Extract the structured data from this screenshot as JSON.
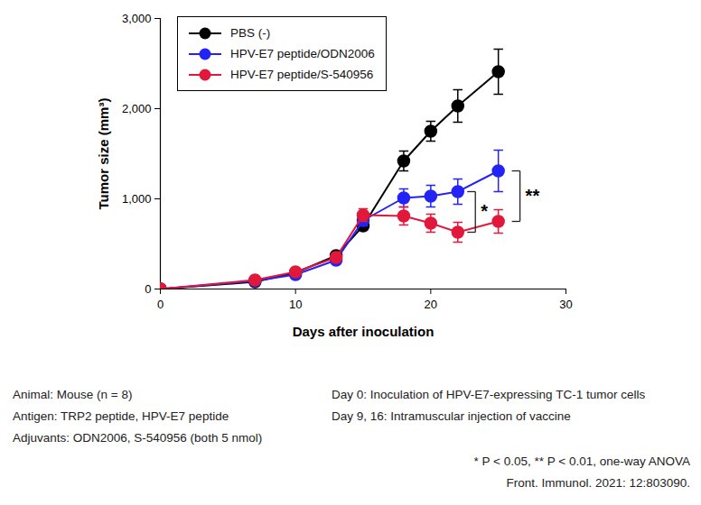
{
  "chart_data": {
    "type": "line",
    "x_label": "Days after inoculation",
    "y_label": "Tumor size (mm³)",
    "x": [
      0,
      7,
      10,
      13,
      15,
      18,
      20,
      22,
      25
    ],
    "xlim": [
      0,
      30
    ],
    "xticks": [
      0,
      10,
      20,
      30
    ],
    "ylim": [
      0,
      3000
    ],
    "yticks": [
      0,
      1000,
      2000,
      3000
    ],
    "legend": "upper left",
    "marker": "circle",
    "series": [
      {
        "name": "PBS (-)",
        "color": "#000000",
        "values": [
          0,
          80,
          180,
          370,
          700,
          1420,
          1750,
          2030,
          2410
        ],
        "errors": [
          0,
          20,
          20,
          30,
          40,
          110,
          110,
          180,
          250
        ]
      },
      {
        "name": "HPV-E7 peptide/ODN2006",
        "color": "#2323f5",
        "values": [
          0,
          90,
          160,
          320,
          760,
          1010,
          1030,
          1080,
          1310
        ],
        "errors": [
          0,
          15,
          15,
          20,
          60,
          100,
          120,
          140,
          230
        ]
      },
      {
        "name": "HPV-E7 peptide/S-540956",
        "color": "#e2183a",
        "values": [
          0,
          100,
          190,
          350,
          820,
          810,
          730,
          630,
          750
        ],
        "errors": [
          0,
          15,
          15,
          25,
          70,
          100,
          100,
          110,
          130
        ]
      }
    ],
    "significance": [
      {
        "label": "*",
        "x": 22,
        "between": [
          "HPV-E7 peptide/ODN2006",
          "HPV-E7 peptide/S-540956"
        ]
      },
      {
        "label": "**",
        "x": 25,
        "between": [
          "HPV-E7 peptide/ODN2006",
          "HPV-E7 peptide/S-540956"
        ]
      }
    ],
    "notes_left": [
      "Animal: Mouse (n = 8)",
      "Antigen: TRP2 peptide, HPV-E7 peptide",
      "Adjuvants: ODN2006, S-540956 (both 5 nmol)"
    ],
    "notes_right": [
      "Day 0: Inoculation of HPV-E7-expressing TC-1 tumor cells",
      "Day 9, 16: Intramuscular injection of vaccine"
    ],
    "notes_bottom": [
      "* P < 0.05, ** P < 0.01, one-way ANOVA",
      "Front. Immunol. 2021: 12:803090."
    ]
  }
}
